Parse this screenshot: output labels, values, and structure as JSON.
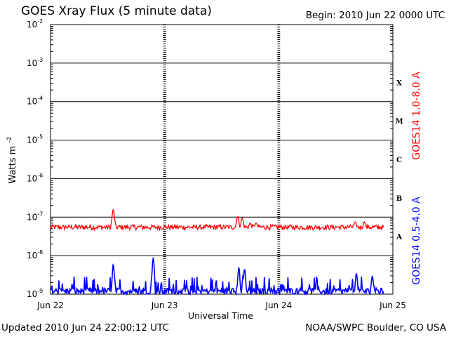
{
  "header": {
    "title": "GOES Xray Flux (5 minute data)",
    "begin": "Begin:  2010 Jun 22 0000 UTC"
  },
  "footer": {
    "updated": "Updated 2010 Jun 24 22:00:12 UTC",
    "credit": "NOAA/SWPC Boulder, CO USA"
  },
  "chart_data": {
    "type": "line",
    "title": "GOES Xray Flux (5 minute data)",
    "xlabel": "Universal Time",
    "ylabel": {
      "base": "Watts m",
      "sup": "-2"
    },
    "yscale": "log",
    "ylim": [
      1e-09,
      0.01
    ],
    "x_ticks": [
      "Jun 22",
      "Jun 23",
      "Jun 24",
      "Jun 25"
    ],
    "x_range_days": [
      0,
      3
    ],
    "y_ticks": [
      {
        "base": "10",
        "sup": "-9"
      },
      {
        "base": "10",
        "sup": "-8"
      },
      {
        "base": "10",
        "sup": "-7"
      },
      {
        "base": "10",
        "sup": "-6"
      },
      {
        "base": "10",
        "sup": "-5"
      },
      {
        "base": "10",
        "sup": "-4"
      },
      {
        "base": "10",
        "sup": "-3"
      },
      {
        "base": "10",
        "sup": "-2"
      }
    ],
    "flare_classes": [
      "A",
      "B",
      "C",
      "M",
      "X"
    ],
    "series": [
      {
        "name": "GOES14 1.0-8.0 A",
        "color": "#ff0000",
        "baseline": 5.5e-08,
        "events": [
          {
            "x": 0.55,
            "y": 1.6e-07
          },
          {
            "x": 1.64,
            "y": 1.05e-07
          },
          {
            "x": 1.68,
            "y": 9.5e-08
          },
          {
            "x": 1.75,
            "y": 7e-08
          },
          {
            "x": 1.8,
            "y": 7e-08
          },
          {
            "x": 2.67,
            "y": 7.5e-08
          },
          {
            "x": 2.75,
            "y": 7.5e-08
          }
        ]
      },
      {
        "name": "GOES14 0.5-4.0 A",
        "color": "#0000ff",
        "baseline": 1.2e-09,
        "events": [
          {
            "x": 0.55,
            "y": 6e-09
          },
          {
            "x": 0.9,
            "y": 9e-09
          },
          {
            "x": 1.65,
            "y": 5e-09
          },
          {
            "x": 1.7,
            "y": 4.5e-09
          },
          {
            "x": 2.68,
            "y": 3.5e-09
          },
          {
            "x": 2.82,
            "y": 3e-09
          }
        ]
      }
    ],
    "grid": true
  }
}
